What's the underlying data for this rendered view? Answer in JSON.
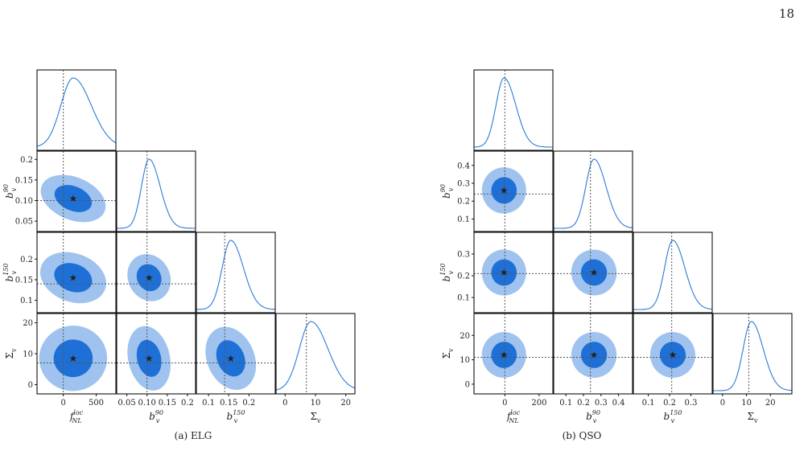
{
  "page_number": "18",
  "colors": {
    "inner": "#1f70d6",
    "outer": "#9fc3ee",
    "line": "#2a7bd6",
    "marker": "#e8262a",
    "axis": "#111111",
    "guide": "#555555"
  },
  "figures": [
    {
      "caption": "(a) ELG",
      "params": [
        {
          "name": "f",
          "sup": "loc",
          "sub": "NL",
          "range": [
            -400,
            800
          ],
          "ticks": [
            0,
            500
          ],
          "tick_labels": [
            "0",
            "500"
          ],
          "truth": 0,
          "fid": 150,
          "sd": 220
        },
        {
          "name": "b",
          "sup": "90",
          "sub": "v",
          "range": [
            0.025,
            0.22
          ],
          "ticks": [
            0.05,
            0.1,
            0.15,
            0.2
          ],
          "tick_labels": [
            "0.05",
            "0.10",
            "0.15",
            "0.2"
          ],
          "truth": 0.1,
          "fid": 0.105,
          "sd": 0.022
        },
        {
          "name": "b",
          "sup": "150",
          "sub": "v",
          "range": [
            0.07,
            0.265
          ],
          "ticks": [
            0.1,
            0.15,
            0.2
          ],
          "tick_labels": [
            "0.1",
            "0.15",
            "0.2"
          ],
          "truth": 0.14,
          "fid": 0.155,
          "sd": 0.025
        },
        {
          "name": "Σ",
          "sup": "",
          "sub": "v",
          "range": [
            -3,
            23
          ],
          "ticks": [
            0,
            10,
            20
          ],
          "tick_labels": [
            "0",
            "10",
            "20"
          ],
          "truth": 7,
          "fid": 8.5,
          "sd": 4.5
        }
      ]
    },
    {
      "caption": "(b) QSO",
      "params": [
        {
          "name": "f",
          "sup": "loc",
          "sub": "NL",
          "range": [
            -180,
            280
          ],
          "ticks": [
            0,
            200
          ],
          "tick_labels": [
            "0",
            "200"
          ],
          "truth": 0,
          "fid": -5,
          "sd": 55
        },
        {
          "name": "b",
          "sup": "90",
          "sub": "v",
          "range": [
            0.03,
            0.48
          ],
          "ticks": [
            0.1,
            0.2,
            0.3,
            0.4
          ],
          "tick_labels": [
            "0.1",
            "0.2",
            "0.3",
            "0.4"
          ],
          "truth": 0.24,
          "fid": 0.26,
          "sd": 0.055
        },
        {
          "name": "b",
          "sup": "150",
          "sub": "v",
          "range": [
            0.03,
            0.4
          ],
          "ticks": [
            0.1,
            0.2,
            0.3
          ],
          "tick_labels": [
            "0.1",
            "0.2",
            "0.3"
          ],
          "truth": 0.21,
          "fid": 0.215,
          "sd": 0.045
        },
        {
          "name": "Σ",
          "sup": "",
          "sub": "v",
          "range": [
            -4,
            29
          ],
          "ticks": [
            0,
            10,
            20
          ],
          "tick_labels": [
            "0",
            "10",
            "20"
          ],
          "truth": 11,
          "fid": 12,
          "sd": 4
        }
      ]
    }
  ],
  "chart_data": [
    {
      "type": "scatter",
      "title": "(a) ELG",
      "parameters": [
        "f_NL^loc",
        "b_v^90",
        "b_v^150",
        "Σ_v"
      ],
      "fiducial_markers": {
        "f_NL^loc": 150,
        "b_v^90": 0.105,
        "b_v^150": 0.155,
        "Σ_v": 8.5
      },
      "truth_lines": {
        "f_NL^loc": 0,
        "b_v^90": 0.1,
        "b_v^150": 0.14,
        "Σ_v": 7
      },
      "marginal_sigma": {
        "f_NL^loc": 220,
        "b_v^90": 0.022,
        "b_v^150": 0.025,
        "Σ_v": 4.5
      },
      "grid": false
    },
    {
      "type": "scatter",
      "title": "(b) QSO",
      "parameters": [
        "f_NL^loc",
        "b_v^90",
        "b_v^150",
        "Σ_v"
      ],
      "fiducial_markers": {
        "f_NL^loc": -5,
        "b_v^90": 0.26,
        "b_v^150": 0.215,
        "Σ_v": 12
      },
      "truth_lines": {
        "f_NL^loc": 0,
        "b_v^90": 0.24,
        "b_v^150": 0.21,
        "Σ_v": 11
      },
      "marginal_sigma": {
        "f_NL^loc": 55,
        "b_v^90": 0.055,
        "b_v^150": 0.045,
        "Σ_v": 4
      },
      "grid": false
    }
  ]
}
